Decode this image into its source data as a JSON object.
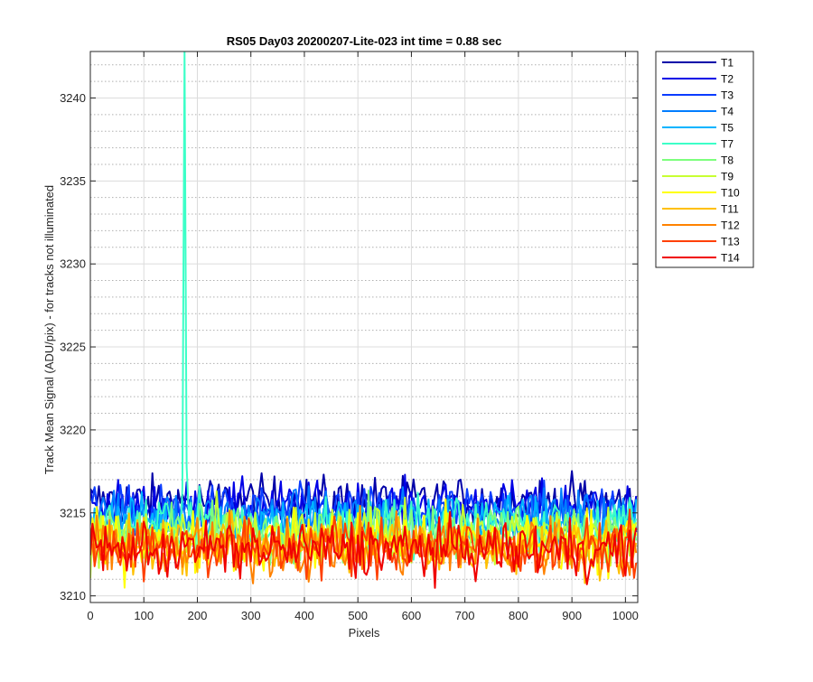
{
  "chart_data": {
    "type": "line",
    "title": "RS05 Day03 20200207-Lite-023 int time = 0.88 sec",
    "xlabel": "Pixels",
    "ylabel": "Track Mean Signal (ADU/pix) - for tracks not illuminated",
    "xlim": [
      0,
      1023
    ],
    "ylim": [
      3209.6,
      3242.8
    ],
    "x_ticks": [
      0,
      100,
      200,
      300,
      400,
      500,
      600,
      700,
      800,
      900,
      1000
    ],
    "y_ticks": [
      3210,
      3215,
      3220,
      3225,
      3230,
      3235,
      3240
    ],
    "x_tick_labels": [
      "0",
      "100",
      "200",
      "300",
      "400",
      "500",
      "600",
      "700",
      "800",
      "900",
      "1000"
    ],
    "y_tick_labels": [
      "3210",
      "3215",
      "3220",
      "3225",
      "3230",
      "3235",
      "3240"
    ],
    "grid": true,
    "minor_grid": true,
    "legend_position": "outside-top-right",
    "x": {
      "start": 0,
      "end": 1023,
      "step": 4
    },
    "series": [
      {
        "name": "T1",
        "color": "#0000a8",
        "mean": 3215.7,
        "noise": 0.75
      },
      {
        "name": "T2",
        "color": "#0000e6",
        "mean": 3215.4,
        "noise": 0.75
      },
      {
        "name": "T3",
        "color": "#0a3cff",
        "mean": 3215.1,
        "noise": 0.75
      },
      {
        "name": "T4",
        "color": "#007dff",
        "mean": 3214.8,
        "noise": 0.8
      },
      {
        "name": "T5",
        "color": "#00b4ff",
        "mean": 3214.5,
        "noise": 0.8
      },
      {
        "name": "T7",
        "color": "#3cffc8",
        "mean": 3214.2,
        "noise": 0.85,
        "spike": {
          "x": 176,
          "y": 3242.8
        }
      },
      {
        "name": "T8",
        "color": "#7dff7d",
        "mean": 3213.9,
        "noise": 0.85
      },
      {
        "name": "T9",
        "color": "#c8ff32",
        "mean": 3213.6,
        "noise": 0.9
      },
      {
        "name": "T10",
        "color": "#ffff00",
        "mean": 3213.3,
        "noise": 0.9
      },
      {
        "name": "T11",
        "color": "#ffc000",
        "mean": 3213.1,
        "noise": 0.9
      },
      {
        "name": "T12",
        "color": "#ff8200",
        "mean": 3212.9,
        "noise": 0.9
      },
      {
        "name": "T13",
        "color": "#ff4000",
        "mean": 3212.9,
        "noise": 0.85
      },
      {
        "name": "T14",
        "color": "#f00000",
        "mean": 3212.8,
        "noise": 0.85
      }
    ]
  }
}
